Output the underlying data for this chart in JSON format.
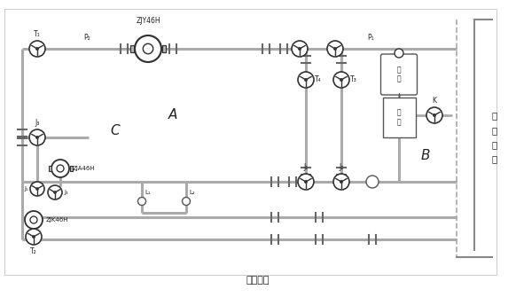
{
  "figsize": [
    5.82,
    3.44
  ],
  "dpi": 100,
  "caption": "（图１）",
  "label_A": "A",
  "label_B": "B",
  "label_C": "C",
  "label_zjy": "ZJY46H",
  "label_zja": "ZJA46H",
  "label_zjk": "ZJK46H",
  "label_xunhuan": "循\n环\n水\n池",
  "pipe_color": "#aaaaaa",
  "pipe_lw": 2.2,
  "valve_color": "#333333",
  "text_color": "#222222",
  "bg_color": "#ffffff"
}
